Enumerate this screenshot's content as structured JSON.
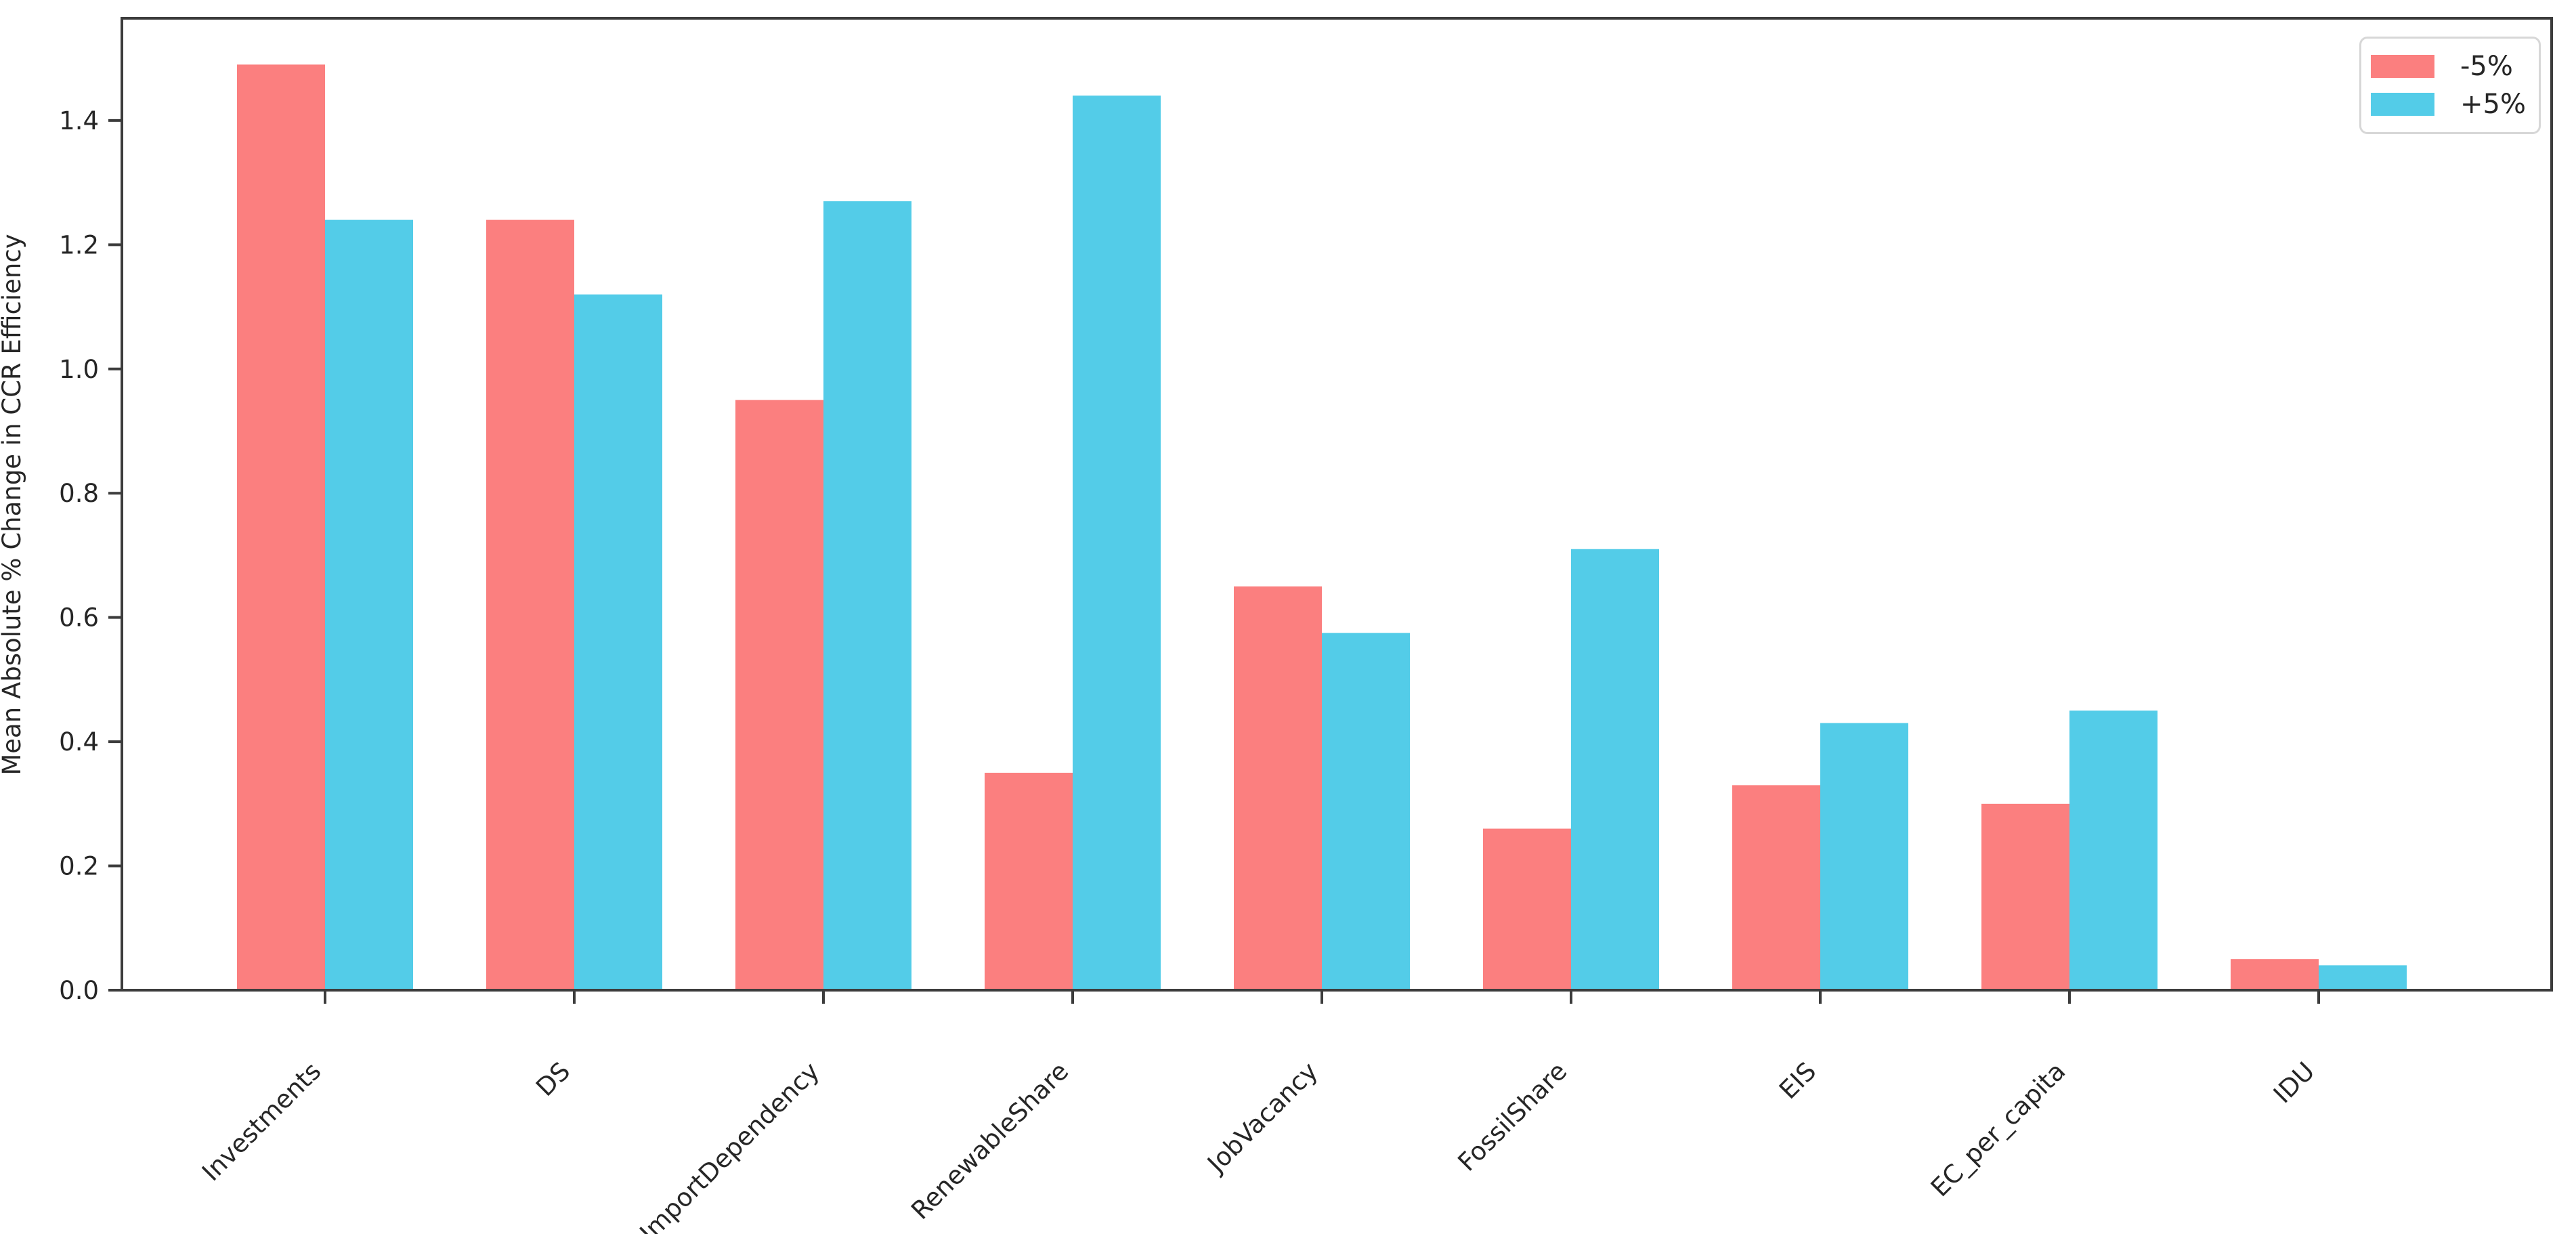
{
  "chart_data": {
    "type": "bar",
    "title": "",
    "xlabel": "",
    "ylabel": "Mean Absolute % Change in CCR Efficiency",
    "categories": [
      "Investments",
      "DS",
      "ImportDependency",
      "RenewableShare",
      "JobVacancy",
      "FossilShare",
      "EIS",
      "EC_per_capita",
      "IDU"
    ],
    "series": [
      {
        "name": "-5%",
        "color": "#fb7f7f",
        "values": [
          1.49,
          1.24,
          0.95,
          0.35,
          0.65,
          0.26,
          0.33,
          0.3,
          0.05
        ]
      },
      {
        "name": "+5%",
        "color": "#53cce8",
        "values": [
          1.24,
          1.12,
          1.27,
          1.44,
          0.575,
          0.71,
          0.43,
          0.45,
          0.04
        ]
      }
    ],
    "yticks": [
      0.0,
      0.2,
      0.4,
      0.6,
      0.8,
      1.0,
      1.2,
      1.4
    ],
    "ylim": [
      0,
      1.5645
    ],
    "grid": false,
    "legend_position": "upper right",
    "x_tick_rotation_deg": 45,
    "axis_color": "#3c3c3c",
    "text_color": "#262626"
  }
}
